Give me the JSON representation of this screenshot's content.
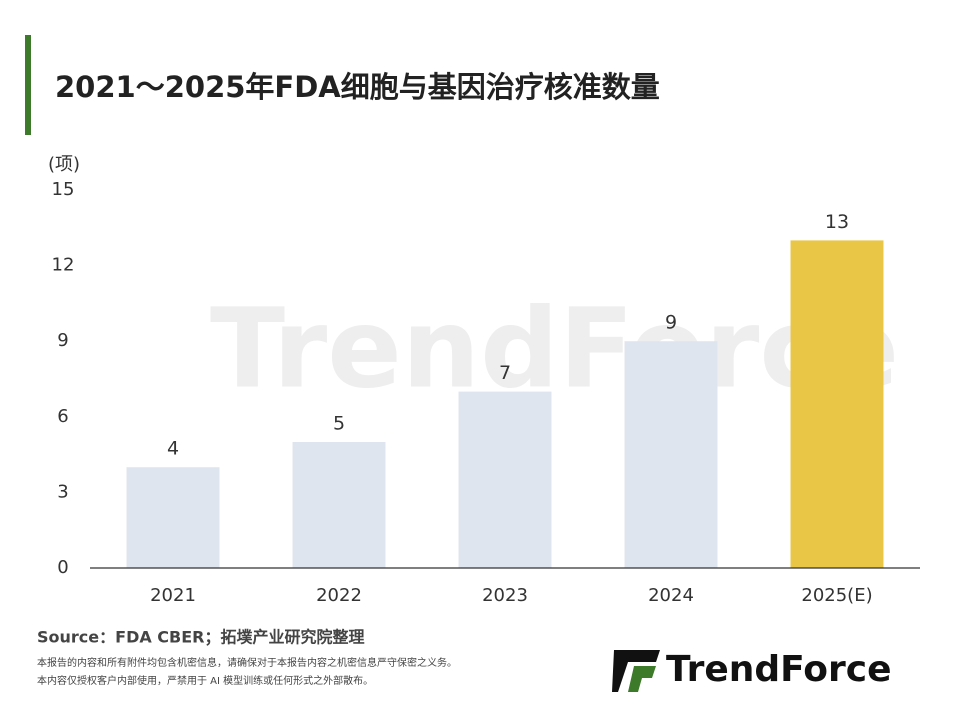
{
  "chart_data": {
    "type": "bar",
    "title": "2021～2025年FDA细胞与基因治疗核准数量",
    "y_unit": "(项)",
    "categories": [
      "2021",
      "2022",
      "2023",
      "2024",
      "2025(E)"
    ],
    "values": [
      4,
      5,
      7,
      9,
      13
    ],
    "colors": [
      "#dfe5ee",
      "#dfe5ee",
      "#dfe5ee",
      "#dfe5ee",
      "#e9c646"
    ],
    "ylim": [
      0,
      15
    ],
    "yticks": [
      0,
      3,
      6,
      9,
      12,
      15
    ],
    "grid": false,
    "source": "Source：FDA CBER；拓墣产业研究院整理",
    "disclaimer": [
      "本报告的内容和所有附件均包含机密信息，请确保对于本报告内容之机密信息严守保密之义务。",
      "本内容仅授权客户内部使用，严禁用于 AI 模型训练或任何形式之外部散布。"
    ],
    "watermark": "TrendForce",
    "logo": "TrendForce"
  }
}
